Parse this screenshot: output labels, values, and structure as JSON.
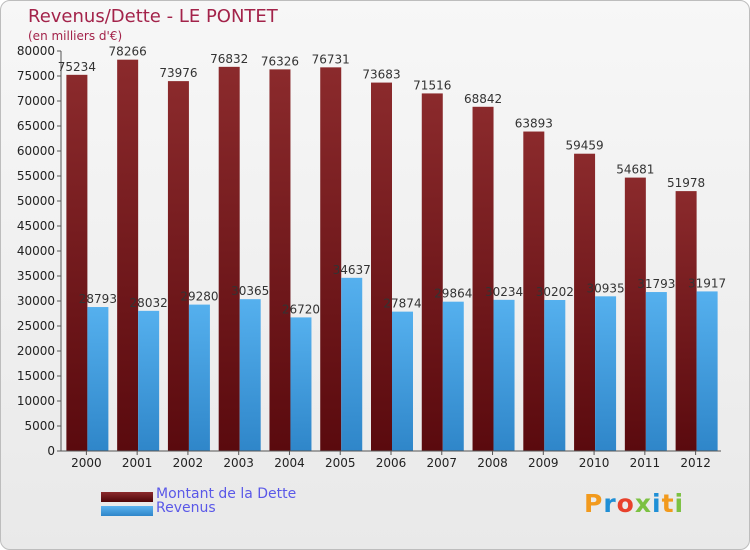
{
  "chart_data": {
    "type": "bar",
    "title": "Revenus/Dette - LE PONTET",
    "subtitle": "(en milliers d'€)",
    "categories": [
      "2000",
      "2001",
      "2002",
      "2003",
      "2004",
      "2005",
      "2006",
      "2007",
      "2008",
      "2009",
      "2010",
      "2011",
      "2012"
    ],
    "series": [
      {
        "name": "Montant de la Dette",
        "color": "#7a1c1c",
        "values": [
          75234,
          78266,
          73976,
          76832,
          76326,
          76731,
          73683,
          71516,
          68842,
          63893,
          59459,
          54681,
          51978
        ]
      },
      {
        "name": "Revenus",
        "color": "#4aa3e6",
        "values": [
          28793,
          28032,
          29280,
          30365,
          26720,
          34637,
          27874,
          29864,
          30234,
          30202,
          30935,
          31793,
          31917
        ]
      }
    ],
    "ylim": [
      0,
      80000
    ],
    "ytick_step": 5000,
    "grid": false,
    "legend": "bottom-left"
  },
  "branding": {
    "logo_text": "Proxiti",
    "logo_colors": [
      "#f29a1d",
      "#1f8fd6",
      "#e8412c",
      "#7cc142",
      "#1f8fd6",
      "#f29a1d",
      "#7cc142"
    ]
  }
}
